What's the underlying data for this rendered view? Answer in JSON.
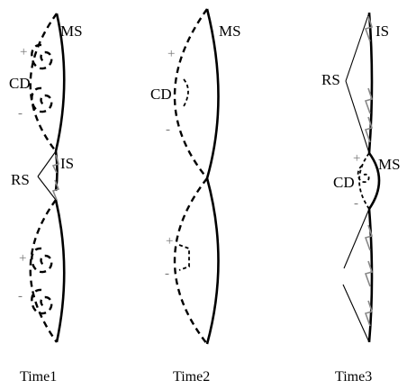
{
  "panels": [
    {
      "caption": "Time1",
      "labels": {
        "ms": "MS",
        "cd": "CD",
        "is": "IS",
        "rs": "RS"
      },
      "signs": [
        "+",
        "-",
        "+",
        "-"
      ]
    },
    {
      "caption": "Time2",
      "labels": {
        "ms": "MS",
        "cd": "CD"
      },
      "signs": [
        "+",
        "-",
        "+",
        "-"
      ]
    },
    {
      "caption": "Time3",
      "labels": {
        "is": "IS",
        "rs": "RS",
        "ms": "MS",
        "cd": "CD"
      },
      "signs": [
        "+",
        "-"
      ]
    }
  ]
}
